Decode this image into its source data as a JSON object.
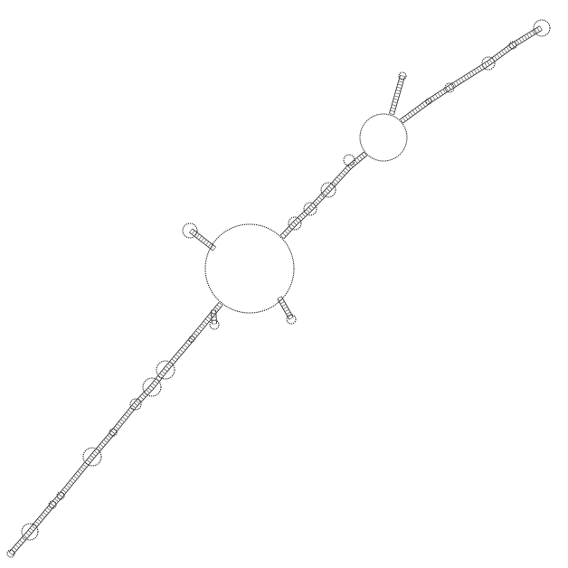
{
  "diagram": {
    "type": "rna-secondary-structure",
    "background": "#ffffff",
    "stroke_color": "#333333",
    "labels": []
  }
}
